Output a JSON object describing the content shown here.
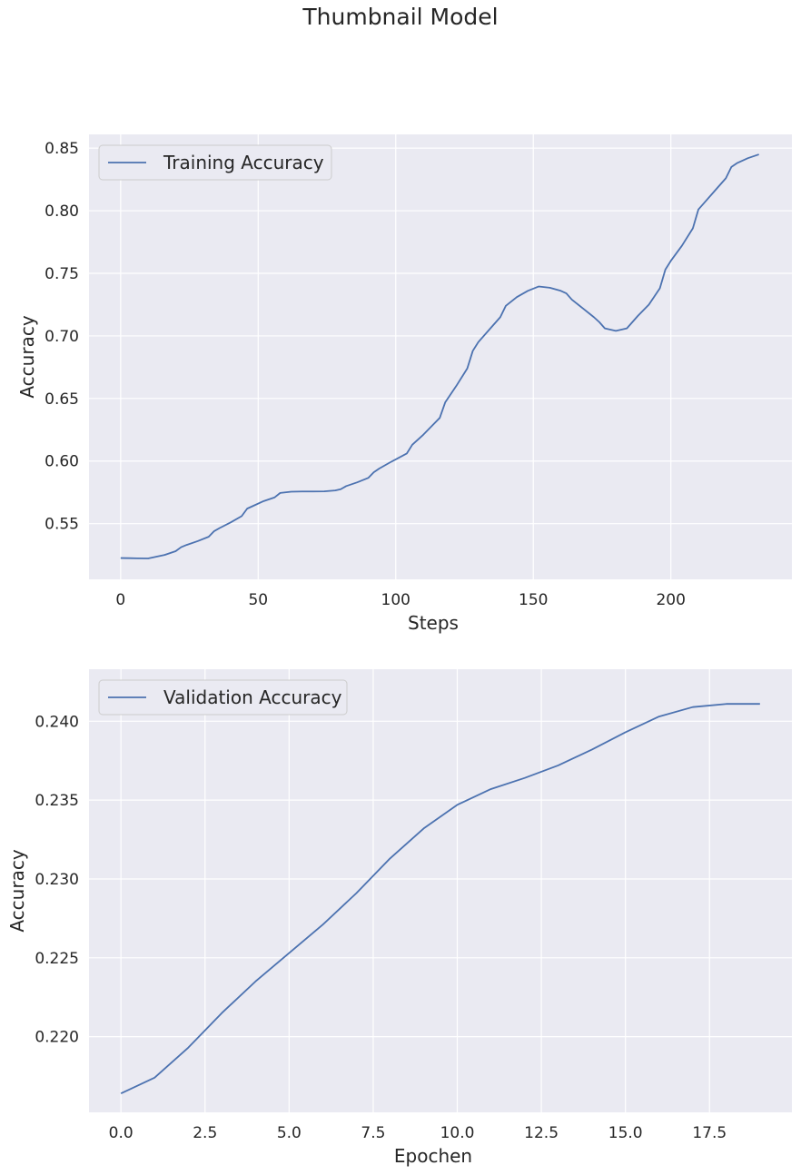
{
  "figure": {
    "title": "Thumbnail Model"
  },
  "chart_data": [
    {
      "type": "line",
      "title": "",
      "xlabel": "Steps",
      "ylabel": "Accuracy",
      "xlim": [
        -11.5,
        244
      ],
      "ylim": [
        0.5055,
        0.861
      ],
      "xticks": [
        0,
        50,
        100,
        150,
        200
      ],
      "xtick_labels": [
        "0",
        "50",
        "100",
        "150",
        "200"
      ],
      "yticks": [
        0.55,
        0.6,
        0.65,
        0.7,
        0.75,
        0.8,
        0.85
      ],
      "ytick_labels": [
        "0.55",
        "0.60",
        "0.65",
        "0.70",
        "0.75",
        "0.80",
        "0.85"
      ],
      "grid": true,
      "legend_position": "upper-left",
      "series": [
        {
          "name": "Training Accuracy",
          "color": "#4c72b0",
          "x": [
            0,
            3,
            6,
            10,
            16,
            20,
            22,
            24,
            28,
            32,
            34,
            36,
            40,
            44,
            46,
            48,
            52,
            56,
            58,
            62,
            66,
            70,
            74,
            78,
            80,
            82,
            86,
            90,
            92,
            94,
            98,
            104,
            106,
            110,
            114,
            116,
            118,
            122,
            126,
            128,
            130,
            134,
            138,
            140,
            144,
            148,
            152,
            156,
            160,
            162,
            164,
            168,
            172,
            174,
            176,
            180,
            184,
            186,
            188,
            192,
            196,
            198,
            200,
            204,
            208,
            210,
            212,
            216,
            220,
            222,
            224,
            228,
            232
          ],
          "values": [
            0.5225,
            0.5224,
            0.5223,
            0.5222,
            0.525,
            0.528,
            0.5312,
            0.533,
            0.536,
            0.5395,
            0.544,
            0.5465,
            0.551,
            0.556,
            0.562,
            0.564,
            0.568,
            0.571,
            0.5745,
            0.5755,
            0.5757,
            0.5757,
            0.5758,
            0.5765,
            0.5775,
            0.58,
            0.583,
            0.5865,
            0.591,
            0.594,
            0.599,
            0.606,
            0.613,
            0.621,
            0.63,
            0.6345,
            0.647,
            0.66,
            0.674,
            0.688,
            0.695,
            0.705,
            0.715,
            0.724,
            0.731,
            0.736,
            0.7395,
            0.7385,
            0.736,
            0.734,
            0.729,
            0.722,
            0.715,
            0.711,
            0.706,
            0.704,
            0.706,
            0.711,
            0.716,
            0.725,
            0.738,
            0.753,
            0.76,
            0.772,
            0.786,
            0.801,
            0.806,
            0.816,
            0.826,
            0.835,
            0.838,
            0.842,
            0.845
          ]
        }
      ]
    },
    {
      "type": "line",
      "title": "",
      "xlabel": "Epochen",
      "ylabel": "Accuracy",
      "xlim": [
        -0.95,
        19.95
      ],
      "ylim": [
        0.2152,
        0.2433
      ],
      "xticks": [
        0.0,
        2.5,
        5.0,
        7.5,
        10.0,
        12.5,
        15.0,
        17.5
      ],
      "xtick_labels": [
        "0.0",
        "2.5",
        "5.0",
        "7.5",
        "10.0",
        "12.5",
        "15.0",
        "17.5"
      ],
      "yticks": [
        0.22,
        0.225,
        0.23,
        0.235,
        0.24
      ],
      "ytick_labels": [
        "0.220",
        "0.225",
        "0.230",
        "0.235",
        "0.240"
      ],
      "grid": true,
      "legend_position": "upper-left",
      "series": [
        {
          "name": "Validation Accuracy",
          "color": "#4c72b0",
          "x": [
            0,
            1,
            2,
            3,
            4,
            5,
            6,
            7,
            8,
            9,
            10,
            11,
            12,
            13,
            14,
            15,
            16,
            17,
            18,
            19
          ],
          "values": [
            0.2164,
            0.2174,
            0.2193,
            0.2215,
            0.2235,
            0.2253,
            0.2271,
            0.2291,
            0.2313,
            0.2332,
            0.2347,
            0.2357,
            0.2364,
            0.2372,
            0.2382,
            0.2393,
            0.2403,
            0.2409,
            0.2411,
            0.2411
          ]
        }
      ]
    }
  ]
}
